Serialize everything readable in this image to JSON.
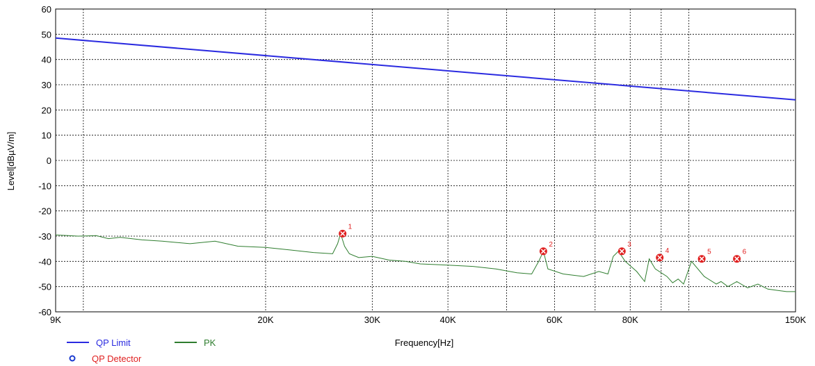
{
  "chart_data": {
    "type": "line",
    "xlabel": "Frequency[Hz]",
    "ylabel": "Level[dBµV/m]",
    "xscale": "log",
    "xlim": [
      9000,
      150000
    ],
    "ylim": [
      -60,
      60
    ],
    "grid": true,
    "x_ticks": [
      {
        "value": 9000,
        "label": "9K"
      },
      {
        "value": 20000,
        "label": "20K"
      },
      {
        "value": 30000,
        "label": "30K"
      },
      {
        "value": 40000,
        "label": "40K"
      },
      {
        "value": 60000,
        "label": "60K"
      },
      {
        "value": 80000,
        "label": "80K"
      },
      {
        "value": 150000,
        "label": "150K"
      }
    ],
    "x_minor_grid": [
      10000,
      50000,
      70000,
      90000,
      100000
    ],
    "y_ticks": [
      60,
      50,
      40,
      30,
      20,
      10,
      0,
      -10,
      -20,
      -30,
      -40,
      -50,
      -60
    ],
    "series": [
      {
        "name": "QP Limit",
        "color": "#2a2ae0",
        "x": [
          9000,
          150000
        ],
        "y": [
          48.5,
          24
        ]
      },
      {
        "name": "PK",
        "color": "#2e7d2e",
        "x": [
          9000,
          9800,
          10500,
          11000,
          11500,
          12500,
          13500,
          15000,
          16500,
          18000,
          20000,
          22000,
          24000,
          25800,
          26300,
          26600,
          27000,
          27500,
          28500,
          30000,
          32000,
          34000,
          36000,
          40000,
          44000,
          48000,
          52000,
          55000,
          56500,
          57500,
          58500,
          62000,
          67000,
          71000,
          73500,
          75000,
          76500,
          78500,
          82000,
          84500,
          86000,
          88000,
          92000,
          94000,
          96000,
          98000,
          101000,
          106000,
          111000,
          113000,
          116000,
          120000,
          125000,
          130000,
          135000,
          140000,
          145000,
          150000
        ],
        "y": [
          -29.5,
          -30,
          -29.8,
          -31,
          -30.5,
          -31.5,
          -32,
          -33,
          -32,
          -34,
          -34.5,
          -35.5,
          -36.5,
          -37,
          -33,
          -29,
          -34,
          -37,
          -38.5,
          -38,
          -39.5,
          -40,
          -41,
          -41.5,
          -42,
          -43,
          -44.5,
          -45,
          -40,
          -36,
          -43,
          -45,
          -46,
          -44,
          -45,
          -38,
          -36,
          -40,
          -44,
          -48,
          -39,
          -43,
          -46,
          -48.5,
          -47,
          -49,
          -40,
          -46,
          -49,
          -48,
          -50,
          -48,
          -50.5,
          -49,
          -51,
          -51.5,
          -52,
          -52
        ]
      }
    ],
    "markers": [
      {
        "label": "1",
        "x": 26800,
        "y": -29
      },
      {
        "label": "2",
        "x": 57500,
        "y": -36
      },
      {
        "label": "3",
        "x": 77500,
        "y": -36
      },
      {
        "label": "4",
        "x": 89500,
        "y": -38.5
      },
      {
        "label": "5",
        "x": 105000,
        "y": -39
      },
      {
        "label": "6",
        "x": 120000,
        "y": -39
      }
    ],
    "legend": {
      "placement": "bottom-left",
      "entries": [
        {
          "label": "QP Limit",
          "color": "#2a2ae0",
          "symbol": "line"
        },
        {
          "label": "PK",
          "color": "#2e7d2e",
          "symbol": "line"
        },
        {
          "label": "QP Detector",
          "color": "#e02020",
          "symbol": "circle"
        }
      ]
    }
  }
}
